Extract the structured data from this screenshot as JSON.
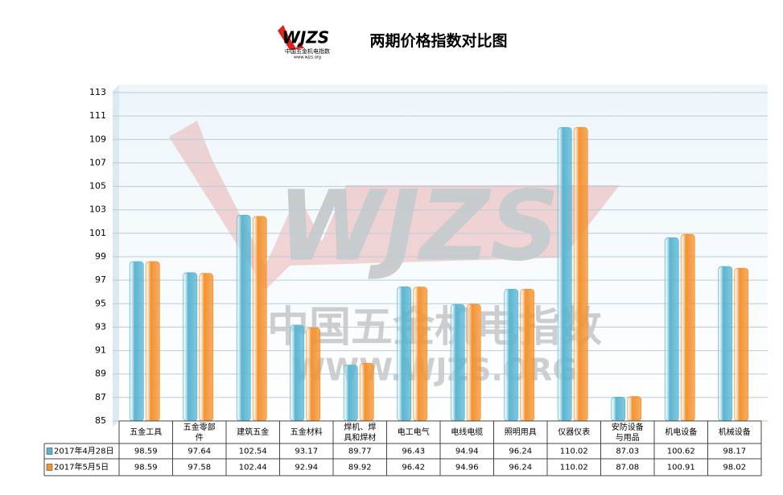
{
  "chart_data": {
    "type": "bar",
    "title": "两期价格指数对比图",
    "logo": {
      "text": "WJZS",
      "subtitle": "中国五金机电指数",
      "url": "www.wjzs.org"
    },
    "watermark": {
      "text": "WJZS",
      "subtitle": "中国五金机电指数",
      "url": "WWW.WJZS.ORG"
    },
    "categories": [
      "五金工具",
      "五金零部件",
      "建筑五金",
      "五金材料",
      "焊机、焊具和焊材",
      "电工电气",
      "电线电缆",
      "照明用具",
      "仪器仪表",
      "安防设备与用品",
      "机电设备",
      "机械设备"
    ],
    "series": [
      {
        "name": "2017年4月28日",
        "color": "#5bb5d1",
        "values": [
          98.59,
          97.64,
          102.54,
          93.17,
          89.77,
          96.43,
          94.94,
          96.24,
          110.02,
          87.03,
          100.62,
          98.17
        ]
      },
      {
        "name": "2017年5月5日",
        "color": "#f39332",
        "values": [
          98.59,
          97.58,
          102.44,
          92.94,
          89.92,
          96.42,
          94.96,
          96.24,
          110.02,
          87.08,
          100.91,
          98.02
        ]
      }
    ],
    "ylim": [
      85,
      113
    ],
    "yticks": [
      85,
      87,
      89,
      91,
      93,
      95,
      97,
      99,
      101,
      103,
      105,
      107,
      109,
      111,
      113
    ],
    "grid": true,
    "data_table": true
  }
}
